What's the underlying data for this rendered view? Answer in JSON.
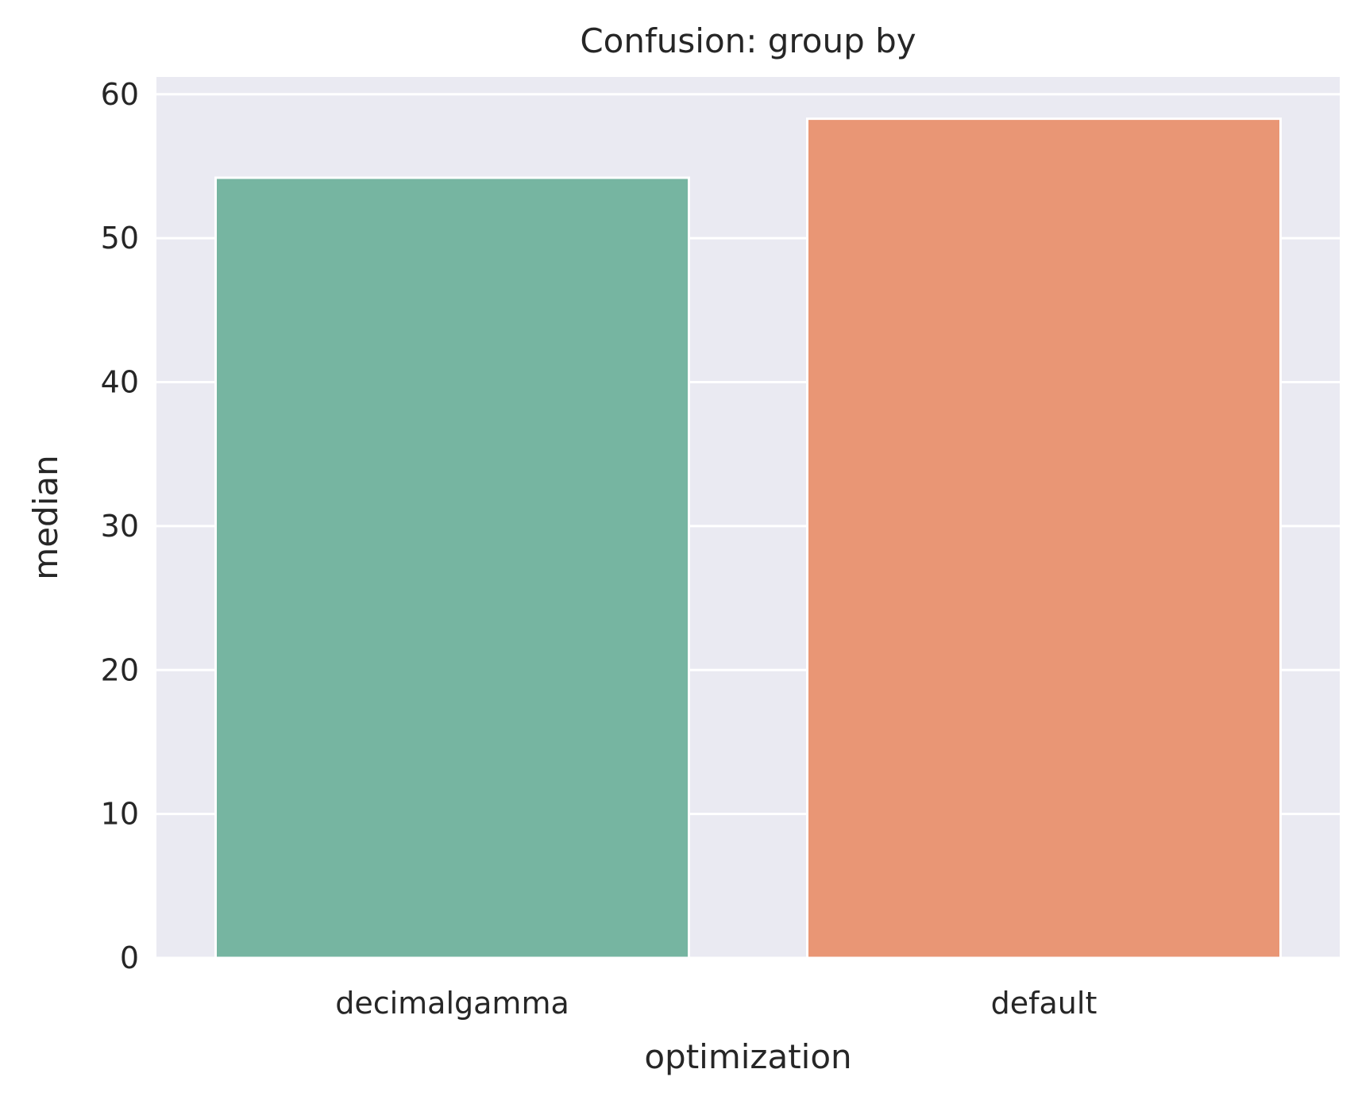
{
  "chart_data": {
    "type": "bar",
    "title": "Confusion: group by",
    "xlabel": "optimization",
    "ylabel": "median",
    "categories": [
      "decimalgamma",
      "default"
    ],
    "values": [
      54.2,
      58.3
    ],
    "colors": [
      "#76b5a1",
      "#e99675"
    ],
    "ylim": [
      0,
      61.2
    ],
    "yticks": [
      0,
      10,
      20,
      30,
      40,
      50,
      60
    ],
    "ytick_labels": [
      "0",
      "10",
      "20",
      "30",
      "40",
      "50",
      "60"
    ],
    "grid": true,
    "background": "#eaeaf2",
    "grid_color": "#ffffff"
  }
}
